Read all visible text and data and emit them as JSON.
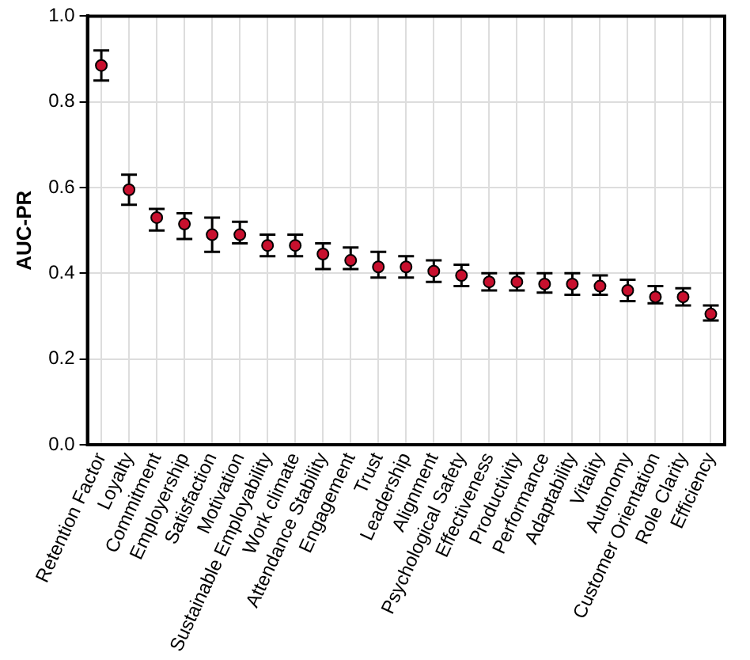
{
  "chart_data": {
    "type": "scatter",
    "ylabel": "AUC-PR",
    "categories": [
      "Retention Factor",
      "Loyalty",
      "Commitment",
      "Employership",
      "Satisfaction",
      "Motivation",
      "Sustainable Employability",
      "Work climate",
      "Attendance Stability",
      "Engagement",
      "Trust",
      "Leadership",
      "Alignment",
      "Psychological Safety",
      "Effectiveness",
      "Productivity",
      "Performance",
      "Adaptability",
      "Vitality",
      "Autonomy",
      "Customer Orientation",
      "Role Clarity",
      "Efficiency"
    ],
    "values": [
      0.885,
      0.595,
      0.53,
      0.515,
      0.49,
      0.49,
      0.465,
      0.465,
      0.445,
      0.43,
      0.415,
      0.415,
      0.405,
      0.395,
      0.38,
      0.38,
      0.375,
      0.375,
      0.37,
      0.36,
      0.345,
      0.345,
      0.305
    ],
    "errors": [
      [
        0.85,
        0.92
      ],
      [
        0.56,
        0.63
      ],
      [
        0.5,
        0.55
      ],
      [
        0.48,
        0.54
      ],
      [
        0.45,
        0.53
      ],
      [
        0.47,
        0.52
      ],
      [
        0.44,
        0.49
      ],
      [
        0.44,
        0.49
      ],
      [
        0.41,
        0.47
      ],
      [
        0.41,
        0.46
      ],
      [
        0.39,
        0.45
      ],
      [
        0.39,
        0.44
      ],
      [
        0.38,
        0.43
      ],
      [
        0.37,
        0.42
      ],
      [
        0.36,
        0.4
      ],
      [
        0.36,
        0.4
      ],
      [
        0.355,
        0.4
      ],
      [
        0.35,
        0.4
      ],
      [
        0.35,
        0.395
      ],
      [
        0.335,
        0.385
      ],
      [
        0.33,
        0.37
      ],
      [
        0.325,
        0.365
      ],
      [
        0.29,
        0.325
      ]
    ],
    "color": "#c8102e",
    "marker": "circle",
    "ylim": [
      0,
      1
    ],
    "yticks": [
      {
        "value": 0,
        "label": "0.0"
      },
      {
        "value": 0.2,
        "label": "0.2"
      },
      {
        "value": 0.4,
        "label": "0.4"
      },
      {
        "value": 0.6,
        "label": "0.6"
      },
      {
        "value": 0.8,
        "label": "0.8"
      },
      {
        "value": 1,
        "label": "1.0"
      }
    ],
    "grid": true
  }
}
